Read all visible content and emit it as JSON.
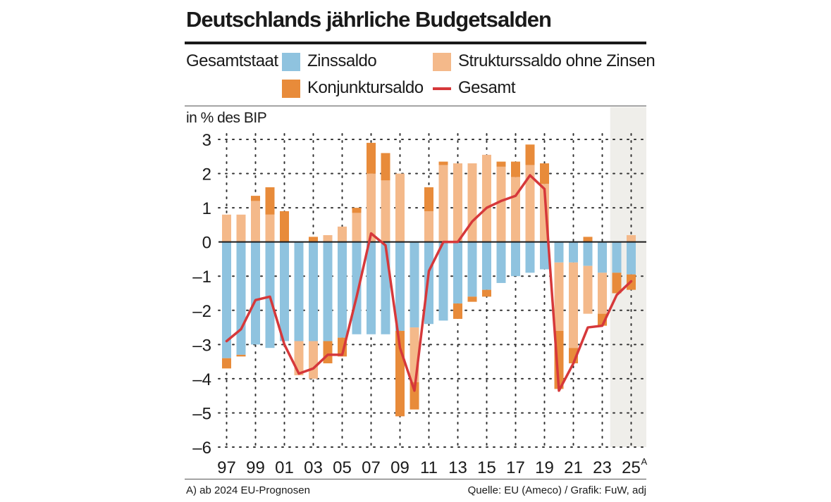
{
  "header": {
    "title": "Deutschlands jährliche Budgetsalden"
  },
  "legend": {
    "group_label": "Gesamtstaat",
    "items": [
      {
        "label": "Zinssaldo",
        "color": "#8fc3df",
        "kind": "bar"
      },
      {
        "label": "Strukturssaldo ohne Zinsen",
        "color": "#f4b98a",
        "kind": "bar"
      },
      {
        "label": "Konjunktursaldo",
        "color": "#e88b3a",
        "kind": "bar"
      },
      {
        "label": "Gesamt",
        "color": "#d6383a",
        "kind": "line"
      }
    ]
  },
  "footer": {
    "note": "A) ab 2024 EU-Prognosen",
    "source": "Quelle: EU (Ameco) / Grafik: FuW, adj"
  },
  "chart_data": {
    "type": "bar",
    "title": "Deutschlands jährliche Budgetsalden",
    "ylabel": "in % des BIP",
    "xlabel": "",
    "ylim": [
      -6,
      3
    ],
    "yticks": [
      "3",
      "2",
      "1",
      "0",
      "–1",
      "–2",
      "–3",
      "–4",
      "–5",
      "–6"
    ],
    "ytick_values": [
      3,
      2,
      1,
      0,
      -1,
      -2,
      -3,
      -4,
      -5,
      -6
    ],
    "xtick_labels": [
      "97",
      "99",
      "01",
      "03",
      "05",
      "07",
      "09",
      "11",
      "13",
      "15",
      "17",
      "19",
      "21",
      "23",
      "25"
    ],
    "xtick_superscript": "A",
    "forecast_from": 2024,
    "grid": true,
    "categories": [
      1997,
      1998,
      1999,
      2000,
      2001,
      2002,
      2003,
      2004,
      2005,
      2006,
      2007,
      2008,
      2009,
      2010,
      2011,
      2012,
      2013,
      2014,
      2015,
      2016,
      2017,
      2018,
      2019,
      2020,
      2021,
      2022,
      2023,
      2024,
      2025
    ],
    "series": [
      {
        "name": "Zinssaldo",
        "color": "#8fc3df",
        "values": [
          -3.4,
          -3.3,
          -3.0,
          -3.1,
          -2.9,
          -2.9,
          -2.9,
          -2.9,
          -2.8,
          -2.7,
          -2.7,
          -2.7,
          -2.6,
          -2.5,
          -2.4,
          -2.3,
          -1.8,
          -1.6,
          -1.4,
          -1.2,
          -1.0,
          -0.9,
          -0.8,
          -0.6,
          -0.6,
          -0.7,
          -0.9,
          -0.9,
          -0.95
        ]
      },
      {
        "name": "Strukturssaldo ohne Zinsen",
        "color": "#f4b98a",
        "values": [
          0.8,
          0.8,
          1.2,
          0.8,
          0.0,
          -1.0,
          -1.1,
          0.2,
          0.45,
          0.85,
          2.0,
          1.8,
          2.0,
          -1.6,
          0.9,
          2.25,
          2.3,
          2.3,
          2.55,
          2.2,
          1.9,
          2.25,
          1.7,
          -2.0,
          -2.5,
          -1.4,
          -1.2,
          0.0,
          0.2
        ]
      },
      {
        "name": "Konjunktursaldo",
        "color": "#e88b3a",
        "values": [
          -0.3,
          -0.05,
          0.15,
          0.8,
          0.9,
          0.0,
          0.15,
          -0.65,
          -0.55,
          0.15,
          0.9,
          0.8,
          -2.5,
          -0.8,
          0.7,
          0.1,
          -0.45,
          -0.15,
          -0.2,
          0.15,
          0.45,
          0.6,
          0.6,
          -1.7,
          -0.45,
          0.15,
          -0.35,
          -0.6,
          -0.45
        ]
      },
      {
        "name": "Gesamt",
        "color": "#d6383a",
        "type": "line",
        "values": [
          -2.9,
          -2.55,
          -1.7,
          -1.6,
          -3.0,
          -3.85,
          -3.7,
          -3.3,
          -3.3,
          -1.6,
          0.25,
          -0.1,
          -3.1,
          -4.35,
          -0.85,
          0.0,
          0.0,
          0.6,
          1.0,
          1.2,
          1.35,
          1.95,
          1.55,
          -4.35,
          -3.55,
          -2.5,
          -2.45,
          -1.55,
          -1.15
        ]
      }
    ]
  }
}
